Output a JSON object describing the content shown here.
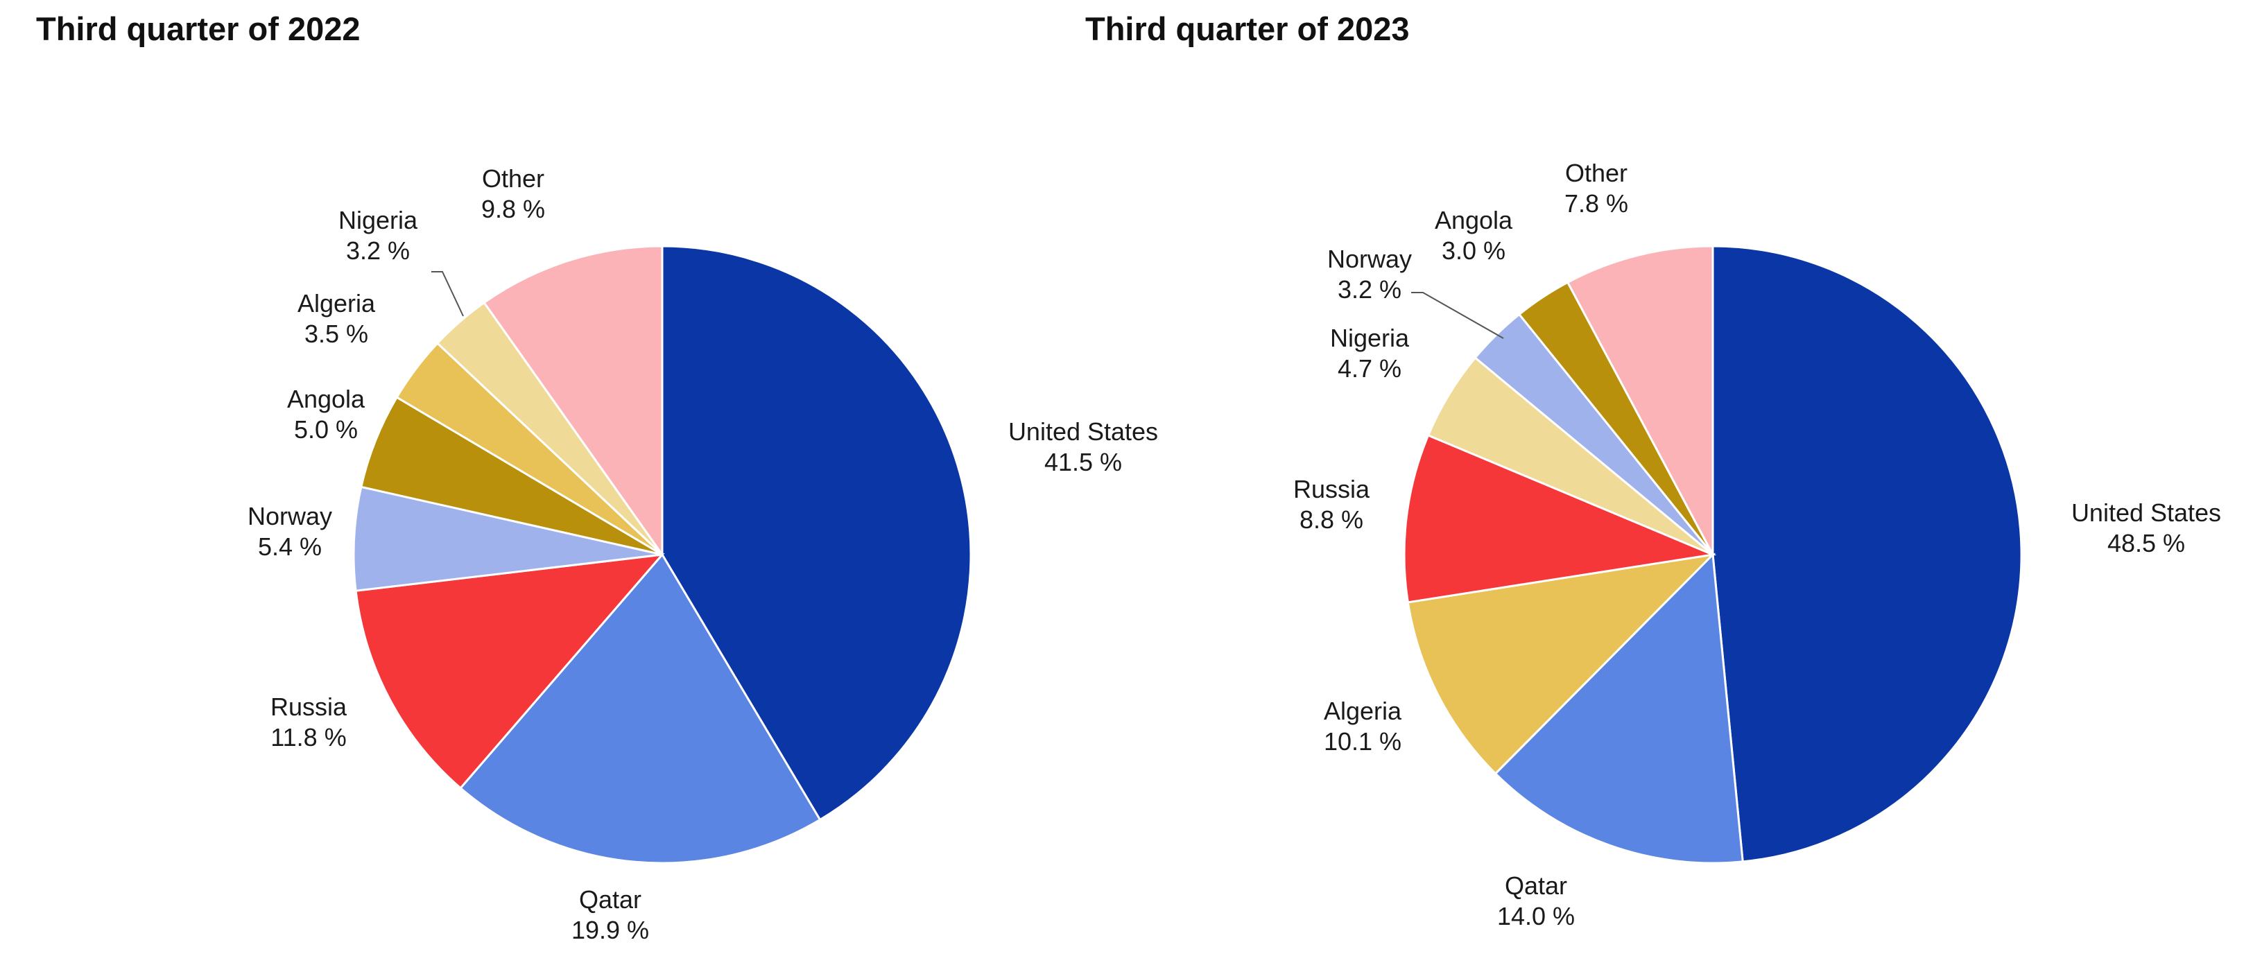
{
  "chart_data": [
    {
      "type": "pie",
      "title": "Third quarter of 2022",
      "slices": [
        {
          "label": "United States",
          "value_label": "41.5 %",
          "value": 41.5,
          "color": "#0a36a6"
        },
        {
          "label": "Qatar",
          "value_label": "19.9 %",
          "value": 19.9,
          "color": "#5b85e3"
        },
        {
          "label": "Russia",
          "value_label": "11.8 %",
          "value": 11.8,
          "color": "#f5373a"
        },
        {
          "label": "Norway",
          "value_label": "5.4 %",
          "value": 5.4,
          "color": "#9fb2ec"
        },
        {
          "label": "Angola",
          "value_label": "5.0 %",
          "value": 5.0,
          "color": "#b8900c"
        },
        {
          "label": "Algeria",
          "value_label": "3.5 %",
          "value": 3.5,
          "color": "#e8c256"
        },
        {
          "label": "Nigeria",
          "value_label": "3.2 %",
          "value": 3.2,
          "color": "#f0da98"
        },
        {
          "label": "Other",
          "value_label": "9.8 %",
          "value": 9.8,
          "color": "#fcb3b8"
        }
      ]
    },
    {
      "type": "pie",
      "title": "Third quarter of 2023",
      "slices": [
        {
          "label": "United States",
          "value_label": "48.5 %",
          "value": 48.5,
          "color": "#0a36a6"
        },
        {
          "label": "Qatar",
          "value_label": "14.0 %",
          "value": 14.0,
          "color": "#5b85e3"
        },
        {
          "label": "Algeria",
          "value_label": "10.1 %",
          "value": 10.1,
          "color": "#e8c256"
        },
        {
          "label": "Russia",
          "value_label": "8.8 %",
          "value": 8.8,
          "color": "#f5373a"
        },
        {
          "label": "Nigeria",
          "value_label": "4.7 %",
          "value": 4.7,
          "color": "#f0da98"
        },
        {
          "label": "Norway",
          "value_label": "3.2 %",
          "value": 3.2,
          "color": "#9fb2ec"
        },
        {
          "label": "Angola",
          "value_label": "3.0 %",
          "value": 3.0,
          "color": "#b8900c"
        },
        {
          "label": "Other",
          "value_label": "7.8 %",
          "value": 7.8,
          "color": "#fcb3b8"
        }
      ]
    }
  ]
}
